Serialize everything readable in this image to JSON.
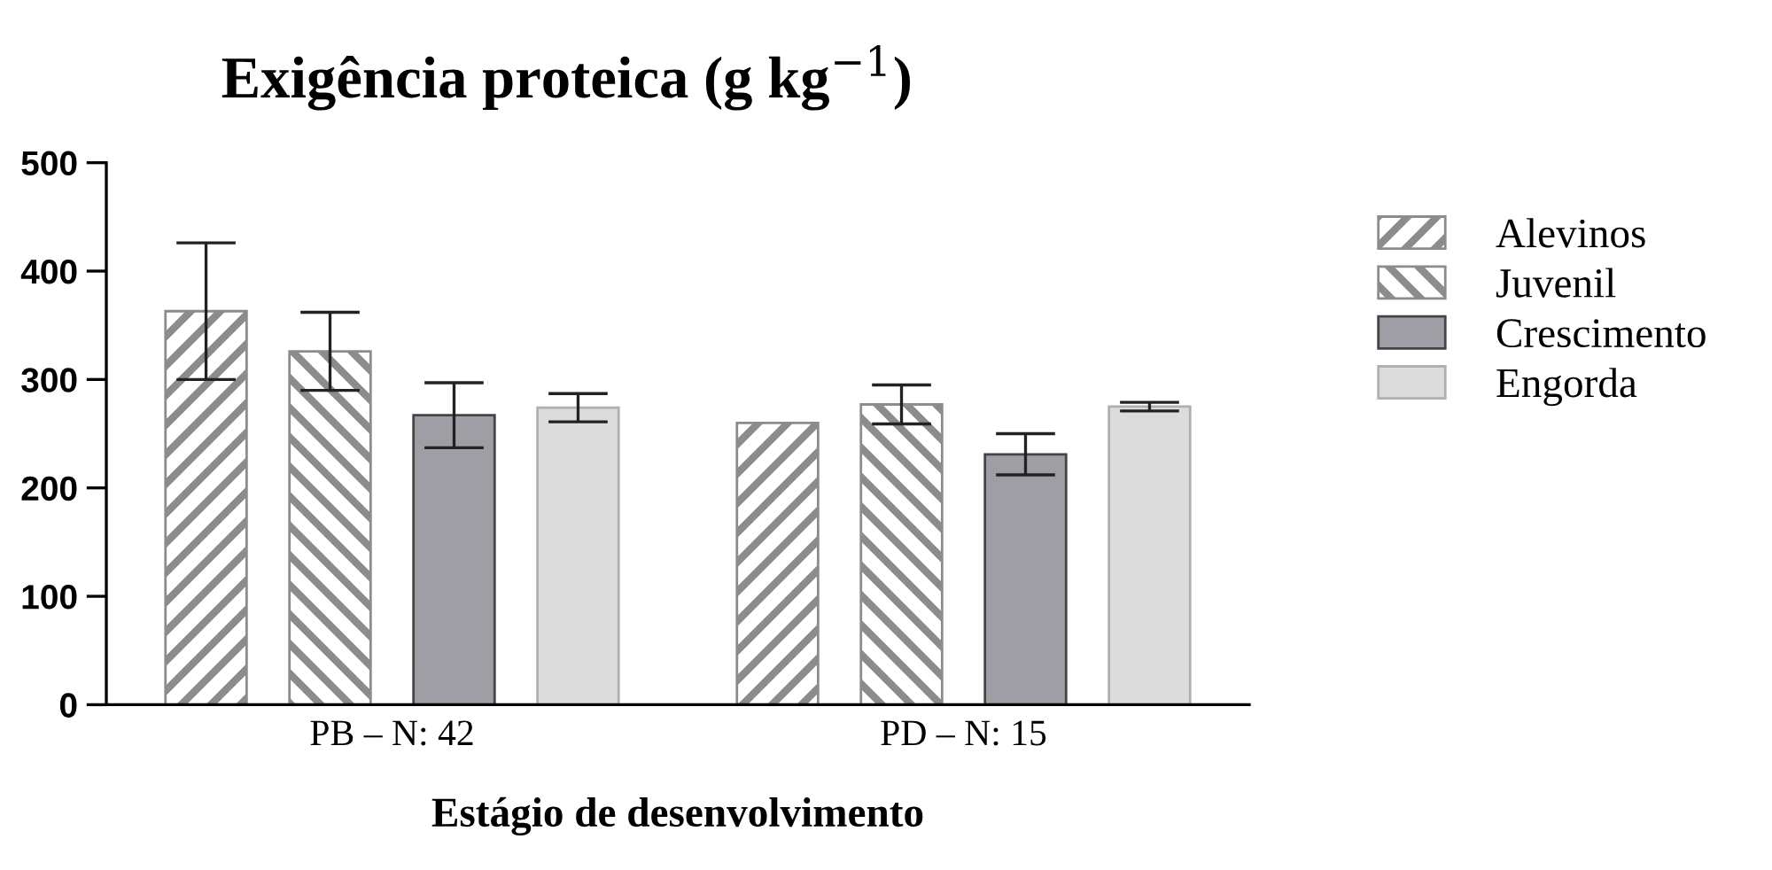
{
  "chart_data": {
    "type": "bar",
    "title": "Exigência proteica (g kg$^{−1}$)",
    "xlabel": "Estágio de desenvolvimento",
    "categories": [
      "PB – N: 42",
      "PD – N: 15"
    ],
    "series": [
      {
        "name": "Alevinos",
        "color": "#8c8c8c",
        "values": [
          363,
          260
        ],
        "errors": [
          63,
          null
        ]
      },
      {
        "name": "Juvenil",
        "color": "#8c8c8c",
        "values": [
          326,
          277
        ],
        "errors": [
          36,
          18
        ]
      },
      {
        "name": "Crescimento",
        "color": "#9e9ea4",
        "values": [
          267,
          231
        ],
        "errors": [
          30,
          19
        ]
      },
      {
        "name": "Engorda",
        "color": "#dcdcdc",
        "values": [
          274,
          275
        ],
        "errors": [
          13,
          4
        ]
      }
    ],
    "ylim": [
      0,
      500
    ],
    "yticks": [
      0,
      100,
      200,
      300,
      400,
      500
    ],
    "grid": false,
    "legend": "top right"
  }
}
